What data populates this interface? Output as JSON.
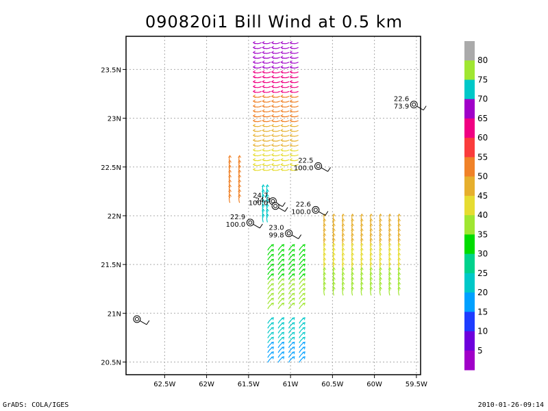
{
  "title": "090820i1 Bill Wind at 0.5 km",
  "footer": {
    "left": "GrADS: COLA/IGES",
    "right": "2010-01-26-09:14"
  },
  "map": {
    "lon_range": [
      -62.96,
      -59.45
    ],
    "lat_range": [
      20.37,
      23.84
    ],
    "x_ticks": [
      {
        "value": -62.5,
        "label": "62.5W"
      },
      {
        "value": -62.0,
        "label": "62W"
      },
      {
        "value": -61.5,
        "label": "61.5W"
      },
      {
        "value": -61.0,
        "label": "61W"
      },
      {
        "value": -60.5,
        "label": "60.5W"
      },
      {
        "value": -60.0,
        "label": "60W"
      },
      {
        "value": -59.5,
        "label": "59.5W"
      }
    ],
    "y_ticks": [
      {
        "value": 20.5,
        "label": "20.5N"
      },
      {
        "value": 21.0,
        "label": "21N"
      },
      {
        "value": 21.5,
        "label": "21.5N"
      },
      {
        "value": 22.0,
        "label": "22N"
      },
      {
        "value": 22.5,
        "label": "22.5N"
      },
      {
        "value": 23.0,
        "label": "23N"
      },
      {
        "value": 23.5,
        "label": "23.5N"
      }
    ],
    "grid": "dotted"
  },
  "colorbar": {
    "labels": [
      "5",
      "10",
      "15",
      "20",
      "25",
      "30",
      "35",
      "40",
      "45",
      "50",
      "55",
      "60",
      "65",
      "70",
      "75",
      "80"
    ],
    "colors": [
      "#a000c8",
      "#6e00dc",
      "#1e3cff",
      "#00a0ff",
      "#00c8c8",
      "#00d28c",
      "#00dc00",
      "#a0e632",
      "#e6dc32",
      "#e6af2d",
      "#f08228",
      "#fa3c3c",
      "#f00082",
      "#a000c8",
      "#00c8c8",
      "#a0e632",
      "#aaaaaa"
    ]
  },
  "dropsondes": [
    {
      "lon": -59.53,
      "lat": 23.14,
      "label1": "22.6",
      "label2": "73.9"
    },
    {
      "lon": -60.67,
      "lat": 22.51,
      "label1": "22.5",
      "label2": "100.0"
    },
    {
      "lon": -61.21,
      "lat": 22.15,
      "label1": "24.7",
      "label2": "100.0"
    },
    {
      "lon": -61.18,
      "lat": 22.1,
      "label1": "24.3",
      "label2": ""
    },
    {
      "lon": -60.7,
      "lat": 22.06,
      "label1": "22.6",
      "label2": "100.0"
    },
    {
      "lon": -61.48,
      "lat": 21.93,
      "label1": "22.9",
      "label2": "100.0"
    },
    {
      "lon": -61.02,
      "lat": 21.82,
      "label1": "23.0",
      "label2": "99.8"
    },
    {
      "lon": -62.83,
      "lat": 20.94,
      "label1": "",
      "label2": ""
    }
  ],
  "wind_swaths": [
    {
      "name": "north-leg",
      "lon": [
        -61.45,
        -60.9
      ],
      "lat": [
        22.45,
        23.8
      ],
      "colors": [
        "#a000c8",
        "#f00082",
        "#f08228",
        "#e6af2d",
        "#e6dc32"
      ],
      "direction": "west"
    },
    {
      "name": "west-arc",
      "lon": [
        -61.78,
        -61.55
      ],
      "lat": [
        22.15,
        22.6
      ],
      "colors": [
        "#f08228"
      ],
      "direction": "north"
    },
    {
      "name": "inner-core",
      "lon": [
        -61.35,
        -61.25
      ],
      "lat": [
        21.95,
        22.3
      ],
      "colors": [
        "#00c8c8"
      ],
      "direction": "north"
    },
    {
      "name": "east-band",
      "lon": [
        -60.65,
        -59.65
      ],
      "lat": [
        21.2,
        22.0
      ],
      "colors": [
        "#e6af2d",
        "#e6dc32",
        "#a0e632"
      ],
      "direction": "north"
    },
    {
      "name": "south-leg",
      "lon": [
        -61.3,
        -60.8
      ],
      "lat": [
        21.05,
        21.7
      ],
      "colors": [
        "#00dc00",
        "#a0e632"
      ],
      "direction": "northeast"
    },
    {
      "name": "far-south",
      "lon": [
        -61.3,
        -60.8
      ],
      "lat": [
        20.5,
        20.95
      ],
      "colors": [
        "#00c8c8",
        "#00a0ff"
      ],
      "direction": "northeast"
    }
  ]
}
